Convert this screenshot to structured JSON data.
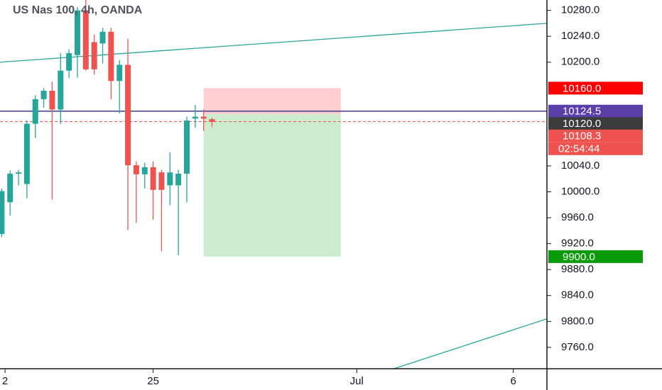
{
  "chart_data": {
    "type": "candlestick",
    "title": "US Nas 100, 4h, OANDA",
    "x": [
      0,
      1,
      2,
      3,
      4,
      5,
      6,
      7,
      8,
      9,
      10,
      11,
      12,
      13,
      14,
      15,
      16,
      17,
      18,
      19,
      20,
      21,
      22,
      23,
      24,
      25
    ],
    "open": [
      9935,
      9984,
      10028,
      10012,
      10105,
      10143,
      10156,
      10127,
      10187,
      10211,
      10280,
      10231,
      10229,
      10247,
      10171,
      10196,
      10041,
      10027,
      10038,
      10030,
      10010,
      10010,
      10028,
      10113,
      10116,
      10112
    ],
    "high": [
      10005,
      10033,
      10034,
      10110,
      10149,
      10160,
      10170,
      10214,
      10220,
      10285,
      10296,
      10242,
      10253,
      10253,
      10203,
      10236,
      10047,
      10045,
      10047,
      10034,
      10061,
      10034,
      10116,
      10134,
      10127,
      10114
    ],
    "low": [
      9930,
      9963,
      10010,
      9990,
      10083,
      10130,
      9988,
      10105,
      10176,
      10176,
      10187,
      10181,
      10198,
      10143,
      10121,
      9941,
      9952,
      10005,
      9957,
      9908,
      9979,
      9902,
      9984,
      10099,
      10094,
      10100
    ],
    "close": [
      10001,
      10028,
      10030,
      10105,
      10143,
      10156,
      10127,
      10187,
      10214,
      10280,
      10189,
      10189,
      10247,
      10171,
      10196,
      10041,
      10027,
      10038,
      10003,
      10003,
      10030,
      10028,
      10110,
      10116,
      10113,
      10108
    ],
    "up_color": "#26a69a",
    "down_color": "#ef5350",
    "xlim": [
      -0.2,
      64.8
    ],
    "xticks": [
      {
        "value": 0.4,
        "label": "2"
      },
      {
        "value": 18,
        "label": "25"
      },
      {
        "value": 42.2,
        "label": "Jul"
      },
      {
        "value": 60.8,
        "label": "6"
      }
    ],
    "ylim": [
      9727,
      10296
    ],
    "yticks": [
      {
        "value": 10280,
        "label": "10280.0"
      },
      {
        "value": 10240,
        "label": "10240.0"
      },
      {
        "value": 10200,
        "label": "10200.0"
      },
      {
        "value": 10040,
        "label": "10040.0"
      },
      {
        "value": 10000,
        "label": "10000.0"
      },
      {
        "value": 9960,
        "label": "9960.0"
      },
      {
        "value": 9920,
        "label": "9920.0"
      },
      {
        "value": 9880,
        "label": "9880.0"
      },
      {
        "value": 9840,
        "label": "9840.0"
      },
      {
        "value": 9800,
        "label": "9800.0"
      },
      {
        "value": 9760,
        "label": "9760.0"
      }
    ],
    "trend_lines": [
      {
        "x": [
          -0.2,
          64.8
        ],
        "y": [
          10200,
          10260
        ],
        "color": "#26a69a"
      },
      {
        "x": [
          46.6,
          64.8
        ],
        "y": [
          9727,
          9804
        ],
        "color": "#26a69a"
      }
    ],
    "position": {
      "x": [
        24.0,
        40.3
      ],
      "stop": 10160,
      "entry": 10120,
      "target": 9900,
      "loss_color": "#ffcdd2",
      "profit_color": "#cdeccd"
    },
    "horizontal_lines": [
      {
        "value": 10124.5,
        "color": "#3a3a8c",
        "dashed": false
      },
      {
        "value": 10108.3,
        "color": "#ef5350",
        "dashed": true
      }
    ],
    "price_labels": [
      {
        "value": 10160,
        "label": "10160.0",
        "color": "#ff0000"
      },
      {
        "value": 10124.5,
        "label": "10124.5",
        "color": "#5b3fa8"
      },
      {
        "value": 10120,
        "label": "10120.0",
        "color": "#3c3c3c"
      },
      {
        "value": 10108.3,
        "label": "10108.3",
        "color": "#ef5350"
      },
      {
        "value": 9900,
        "label": "9900.0",
        "color": "#0a9a0a"
      }
    ],
    "countdown": "02:54:44"
  }
}
